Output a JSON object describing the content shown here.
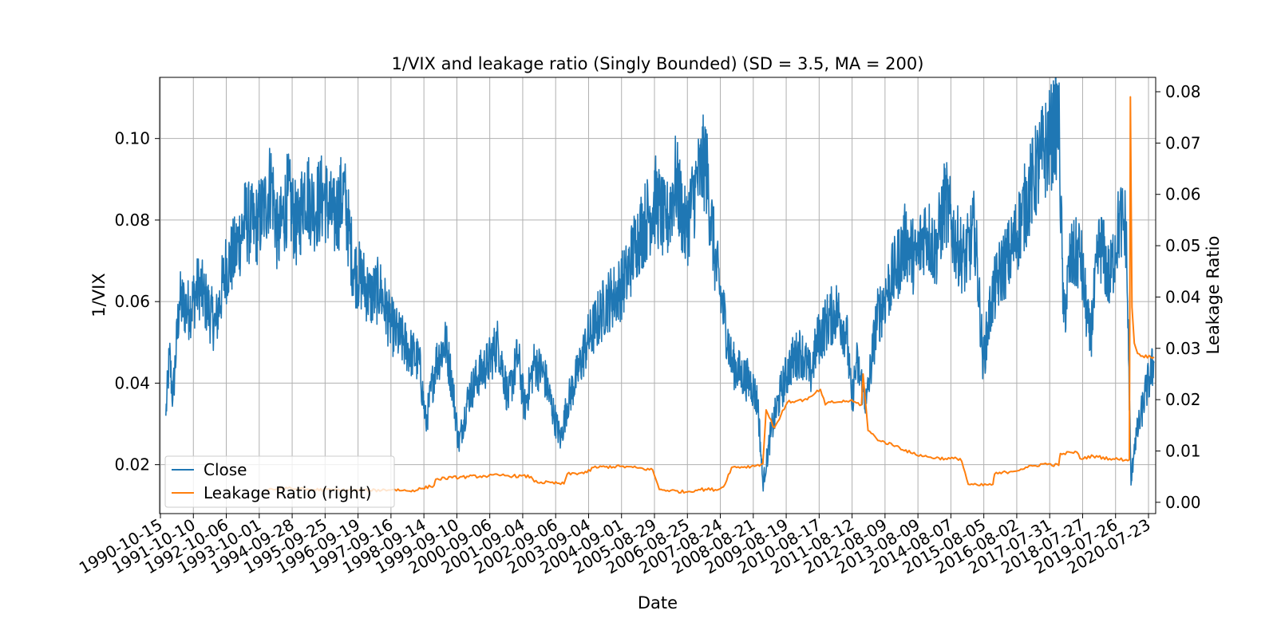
{
  "chart_data": {
    "type": "line",
    "title": "1/VIX and leakage ratio (Singly Bounded) (SD = 3.5, MA = 200)",
    "xlabel": "Date",
    "ylabel": "1/VIX",
    "ylabel_right": "Leakage Ratio",
    "ylim": [
      0.008,
      0.115
    ],
    "ylim_right": [
      -0.0022,
      0.0828
    ],
    "xlim": [
      1990.6,
      2020.9
    ],
    "grid": true,
    "legend": "lower-left",
    "yticks": [
      0.02,
      0.04,
      0.06,
      0.08,
      0.1
    ],
    "ytick_labels": [
      "0.02",
      "0.04",
      "0.06",
      "0.08",
      "0.10"
    ],
    "yticks_right": [
      0.0,
      0.01,
      0.02,
      0.03,
      0.04,
      0.05,
      0.06,
      0.07,
      0.08
    ],
    "ytick_labels_right": [
      "0.00",
      "0.01",
      "0.02",
      "0.03",
      "0.04",
      "0.05",
      "0.06",
      "0.07",
      "0.08"
    ],
    "xtick_labels": [
      "1990-10-15",
      "1991-10-10",
      "1992-10-06",
      "1993-10-01",
      "1994-09-28",
      "1995-09-25",
      "1996-09-19",
      "1997-09-16",
      "1998-09-14",
      "1999-09-10",
      "2000-09-06",
      "2001-09-04",
      "2002-09-06",
      "2003-09-04",
      "2004-09-01",
      "2005-08-29",
      "2006-08-25",
      "2007-08-24",
      "2008-08-21",
      "2009-08-19",
      "2010-08-17",
      "2011-08-12",
      "2012-08-09",
      "2013-08-09",
      "2014-08-07",
      "2015-08-05",
      "2016-08-02",
      "2017-07-31",
      "2018-07-27",
      "2019-07-26",
      "2020-07-23"
    ],
    "series": [
      {
        "name": "Close",
        "axis": "left",
        "color": "#1f77b4",
        "x": [
          1990.79,
          1990.9,
          1991.0,
          1991.2,
          1991.5,
          1991.8,
          1992.0,
          1992.3,
          1992.6,
          1992.9,
          1993.2,
          1993.5,
          1993.8,
          1994.0,
          1994.2,
          1994.5,
          1994.8,
          1995.0,
          1995.3,
          1995.6,
          1995.9,
          1996.2,
          1996.5,
          1996.8,
          1997.0,
          1997.3,
          1997.6,
          1997.8,
          1998.0,
          1998.3,
          1998.5,
          1998.7,
          1999.0,
          1999.3,
          1999.5,
          1999.7,
          2000.0,
          2000.3,
          2000.6,
          2000.9,
          2001.2,
          2001.5,
          2001.7,
          2002.0,
          2002.3,
          2002.6,
          2002.8,
          2003.0,
          2003.3,
          2003.6,
          2003.9,
          2004.2,
          2004.5,
          2004.8,
          2005.1,
          2005.4,
          2005.7,
          2006.0,
          2006.3,
          2006.6,
          2006.9,
          2007.2,
          2007.5,
          2007.7,
          2008.0,
          2008.3,
          2008.6,
          2008.8,
          2008.95,
          2009.2,
          2009.5,
          2009.8,
          2010.1,
          2010.4,
          2010.6,
          2010.9,
          2011.2,
          2011.5,
          2011.65,
          2011.8,
          2012.1,
          2012.4,
          2012.7,
          2013.0,
          2013.3,
          2013.6,
          2013.9,
          2014.2,
          2014.5,
          2014.8,
          2015.1,
          2015.4,
          2015.65,
          2015.9,
          2016.2,
          2016.5,
          2016.8,
          2017.1,
          2017.4,
          2017.7,
          2017.95,
          2018.1,
          2018.3,
          2018.6,
          2018.9,
          2019.2,
          2019.5,
          2019.8,
          2020.0,
          2020.15,
          2020.25,
          2020.4,
          2020.6,
          2020.85
        ],
        "values": [
          0.032,
          0.047,
          0.036,
          0.06,
          0.058,
          0.064,
          0.06,
          0.054,
          0.068,
          0.072,
          0.08,
          0.078,
          0.083,
          0.09,
          0.075,
          0.086,
          0.077,
          0.088,
          0.083,
          0.086,
          0.08,
          0.087,
          0.068,
          0.065,
          0.061,
          0.063,
          0.055,
          0.052,
          0.05,
          0.047,
          0.045,
          0.03,
          0.045,
          0.05,
          0.04,
          0.025,
          0.037,
          0.042,
          0.045,
          0.05,
          0.036,
          0.047,
          0.034,
          0.045,
          0.042,
          0.032,
          0.026,
          0.035,
          0.042,
          0.05,
          0.055,
          0.06,
          0.062,
          0.066,
          0.075,
          0.08,
          0.085,
          0.078,
          0.09,
          0.077,
          0.088,
          0.095,
          0.07,
          0.06,
          0.045,
          0.042,
          0.04,
          0.035,
          0.015,
          0.028,
          0.038,
          0.045,
          0.048,
          0.042,
          0.05,
          0.055,
          0.058,
          0.052,
          0.035,
          0.045,
          0.035,
          0.055,
          0.062,
          0.068,
          0.075,
          0.07,
          0.078,
          0.072,
          0.085,
          0.075,
          0.07,
          0.078,
          0.045,
          0.06,
          0.068,
          0.072,
          0.08,
          0.088,
          0.095,
          0.1,
          0.105,
          0.055,
          0.07,
          0.072,
          0.05,
          0.075,
          0.065,
          0.08,
          0.078,
          0.015,
          0.025,
          0.03,
          0.038,
          0.045
        ]
      },
      {
        "name": "Leakage Ratio (right)",
        "axis": "right",
        "color": "#ff7f0e",
        "x": [
          1993.8,
          1994.5,
          1995.0,
          1996.0,
          1997.0,
          1997.7,
          1998.2,
          1998.6,
          1998.95,
          1999.0,
          1999.5,
          2000.0,
          2000.5,
          2001.0,
          2001.1,
          2001.9,
          2002.0,
          2002.9,
          2003.0,
          2003.6,
          2003.8,
          2004.6,
          2005.0,
          2005.6,
          2005.8,
          2006.6,
          2007.0,
          2007.6,
          2007.75,
          2008.0,
          2008.6,
          2008.95,
          2009.05,
          2009.15,
          2009.3,
          2009.5,
          2009.7,
          2010.0,
          2010.3,
          2010.5,
          2010.7,
          2010.85,
          2011.0,
          2011.2,
          2011.6,
          2011.95,
          2012.0,
          2012.15,
          2012.5,
          2013.0,
          2013.5,
          2014.0,
          2014.5,
          2014.95,
          2015.0,
          2015.2,
          2015.5,
          2015.95,
          2016.0,
          2016.5,
          2017.0,
          2017.5,
          2017.95,
          2018.0,
          2018.1,
          2018.5,
          2018.6,
          2019.0,
          2019.5,
          2020.0,
          2020.1,
          2020.13,
          2020.18,
          2020.25,
          2020.35,
          2020.5,
          2020.85
        ],
        "values": [
          0.0025,
          0.0027,
          0.0025,
          0.0024,
          0.0023,
          0.0025,
          0.0022,
          0.0027,
          0.0033,
          0.0045,
          0.0048,
          0.005,
          0.0051,
          0.0053,
          0.0052,
          0.005,
          0.004,
          0.0036,
          0.0055,
          0.0058,
          0.0068,
          0.007,
          0.0068,
          0.0063,
          0.0025,
          0.002,
          0.0025,
          0.0025,
          0.003,
          0.0068,
          0.007,
          0.0075,
          0.018,
          0.0165,
          0.0145,
          0.017,
          0.0195,
          0.0198,
          0.02,
          0.021,
          0.022,
          0.019,
          0.0195,
          0.0195,
          0.0198,
          0.019,
          0.025,
          0.014,
          0.012,
          0.011,
          0.0095,
          0.0088,
          0.0085,
          0.0085,
          0.008,
          0.0035,
          0.0033,
          0.0035,
          0.0055,
          0.006,
          0.0068,
          0.0075,
          0.0072,
          0.0095,
          0.0095,
          0.0098,
          0.0085,
          0.009,
          0.0085,
          0.0083,
          0.0083,
          0.079,
          0.038,
          0.031,
          0.029,
          0.0285,
          0.0283
        ]
      }
    ]
  }
}
